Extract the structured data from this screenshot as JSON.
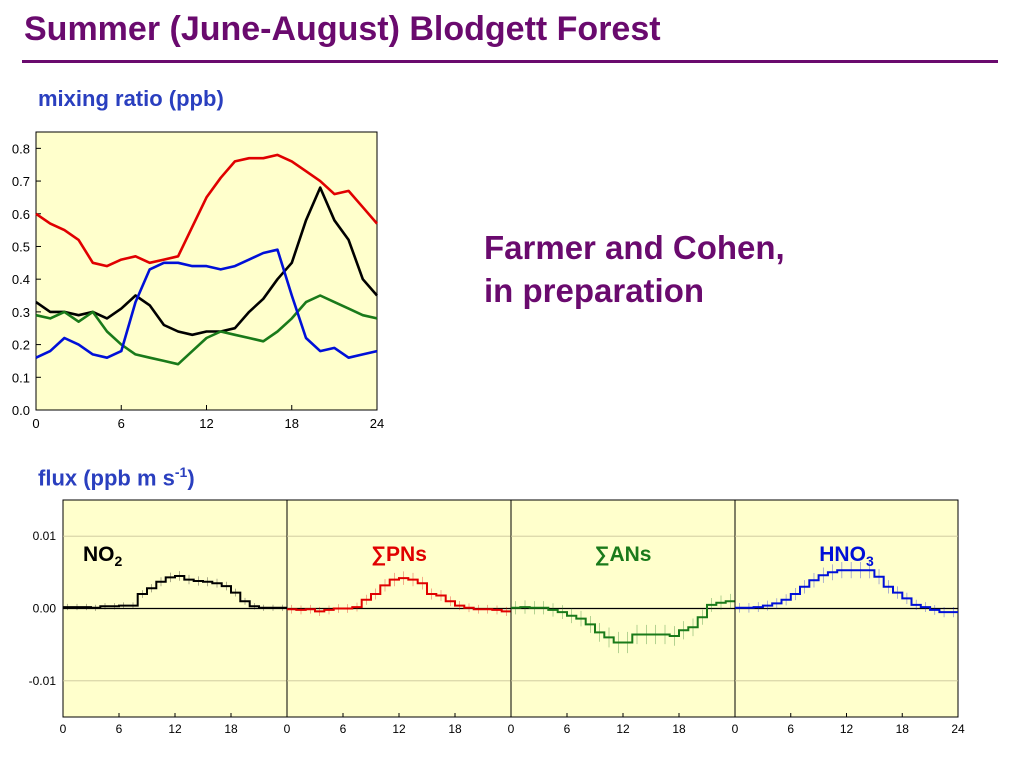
{
  "slide": {
    "title": "Summer (June-August) Blodgett Forest",
    "citation_line1": "Farmer and Cohen,",
    "citation_line2": "in preparation"
  },
  "colors": {
    "title": "#6a0a6e",
    "label": "#2a3fbf",
    "plot_bg": "#ffffcc",
    "black": "#000000",
    "red": "#e00000",
    "green": "#1a7a1a",
    "blue": "#0010d8"
  },
  "chart_data": [
    {
      "type": "line",
      "title": "mixing ratio (ppb)",
      "xlabel": "",
      "ylabel": "",
      "xlim": [
        0,
        24
      ],
      "ylim": [
        0,
        0.85
      ],
      "x_ticks": [
        "0",
        "6",
        "12",
        "18",
        "24"
      ],
      "y_ticks": [
        "0.0",
        "0.1",
        "0.2",
        "0.3",
        "0.4",
        "0.5",
        "0.6",
        "0.7",
        "0.8"
      ],
      "x": [
        0,
        1,
        2,
        3,
        4,
        5,
        6,
        7,
        8,
        9,
        10,
        11,
        12,
        13,
        14,
        15,
        16,
        17,
        18,
        19,
        20,
        21,
        22,
        23,
        24
      ],
      "series": [
        {
          "color": "red",
          "values": [
            0.6,
            0.57,
            0.55,
            0.52,
            0.45,
            0.44,
            0.46,
            0.47,
            0.45,
            0.46,
            0.47,
            0.56,
            0.65,
            0.71,
            0.76,
            0.77,
            0.77,
            0.78,
            0.76,
            0.73,
            0.7,
            0.66,
            0.67,
            0.62,
            0.57
          ]
        },
        {
          "color": "black",
          "values": [
            0.33,
            0.3,
            0.3,
            0.29,
            0.3,
            0.28,
            0.31,
            0.35,
            0.32,
            0.26,
            0.24,
            0.23,
            0.24,
            0.24,
            0.25,
            0.3,
            0.34,
            0.4,
            0.45,
            0.58,
            0.68,
            0.58,
            0.52,
            0.4,
            0.35
          ]
        },
        {
          "color": "green",
          "values": [
            0.29,
            0.28,
            0.3,
            0.27,
            0.3,
            0.24,
            0.2,
            0.17,
            0.16,
            0.15,
            0.14,
            0.18,
            0.22,
            0.24,
            0.23,
            0.22,
            0.21,
            0.24,
            0.28,
            0.33,
            0.35,
            0.33,
            0.31,
            0.29,
            0.28
          ]
        },
        {
          "color": "blue",
          "values": [
            0.16,
            0.18,
            0.22,
            0.2,
            0.17,
            0.16,
            0.18,
            0.33,
            0.43,
            0.45,
            0.45,
            0.44,
            0.44,
            0.43,
            0.44,
            0.46,
            0.48,
            0.49,
            0.35,
            0.22,
            0.18,
            0.19,
            0.16,
            0.17,
            0.18
          ]
        }
      ]
    },
    {
      "type": "line",
      "title": "flux (ppb m s",
      "title_sup": "-1",
      "title_end": ")",
      "ylim": [
        -0.015,
        0.015
      ],
      "y_ticks": [
        "0.01",
        "0.00",
        "-0.01"
      ],
      "y_tick_values": [
        0.01,
        0.0,
        -0.01
      ],
      "x_ticks": [
        "0",
        "6",
        "12",
        "18"
      ],
      "x_ticks_last": [
        "0",
        "6",
        "12",
        "18",
        "24"
      ],
      "x": [
        0,
        1,
        2,
        3,
        4,
        5,
        6,
        7,
        8,
        9,
        10,
        11,
        12,
        13,
        14,
        15,
        16,
        17,
        18,
        19,
        20,
        21,
        22,
        23
      ],
      "panels": [
        {
          "label": "NO",
          "label_sub": "2",
          "color": "black",
          "values": [
            0.0002,
            0.0002,
            0.0002,
            0.0001,
            0.0003,
            0.0003,
            0.0004,
            0.0004,
            0.002,
            0.0028,
            0.0037,
            0.0043,
            0.0045,
            0.004,
            0.0038,
            0.0037,
            0.0035,
            0.0031,
            0.0022,
            0.001,
            0.0003,
            0.0001,
            0.0001,
            0.0001
          ],
          "err": 0.0007
        },
        {
          "label": "∑PNs",
          "color": "red",
          "values": [
            -0.0001,
            -0.0002,
            -0.0001,
            -0.0004,
            -0.0002,
            0.0,
            0.0,
            0.0002,
            0.0012,
            0.002,
            0.0032,
            0.004,
            0.0042,
            0.004,
            0.0035,
            0.002,
            0.0018,
            0.001,
            0.0004,
            0.0001,
            -0.0001,
            -0.0001,
            -0.0002,
            -0.0004
          ],
          "err": 0.001
        },
        {
          "label": "∑ANs",
          "color": "green",
          "values": [
            0.0001,
            0.0002,
            0.0001,
            0.0001,
            -0.0002,
            -0.0005,
            -0.001,
            -0.0014,
            -0.0022,
            -0.0033,
            -0.004,
            -0.0047,
            -0.0047,
            -0.0036,
            -0.0036,
            -0.0036,
            -0.0036,
            -0.0038,
            -0.003,
            -0.0026,
            -0.0012,
            0.0005,
            0.0008,
            0.001
          ],
          "err": 0.0015
        },
        {
          "label": "HNO",
          "label_sub": "3",
          "color": "blue",
          "values": [
            0.0001,
            0.0001,
            0.0002,
            0.0004,
            0.0007,
            0.0012,
            0.002,
            0.003,
            0.0039,
            0.0046,
            0.005,
            0.0053,
            0.0053,
            0.0053,
            0.0053,
            0.0044,
            0.003,
            0.0022,
            0.0014,
            0.0005,
            0.0002,
            -0.0002,
            -0.0005,
            -0.0005
          ],
          "err": 0.0011
        }
      ]
    }
  ]
}
